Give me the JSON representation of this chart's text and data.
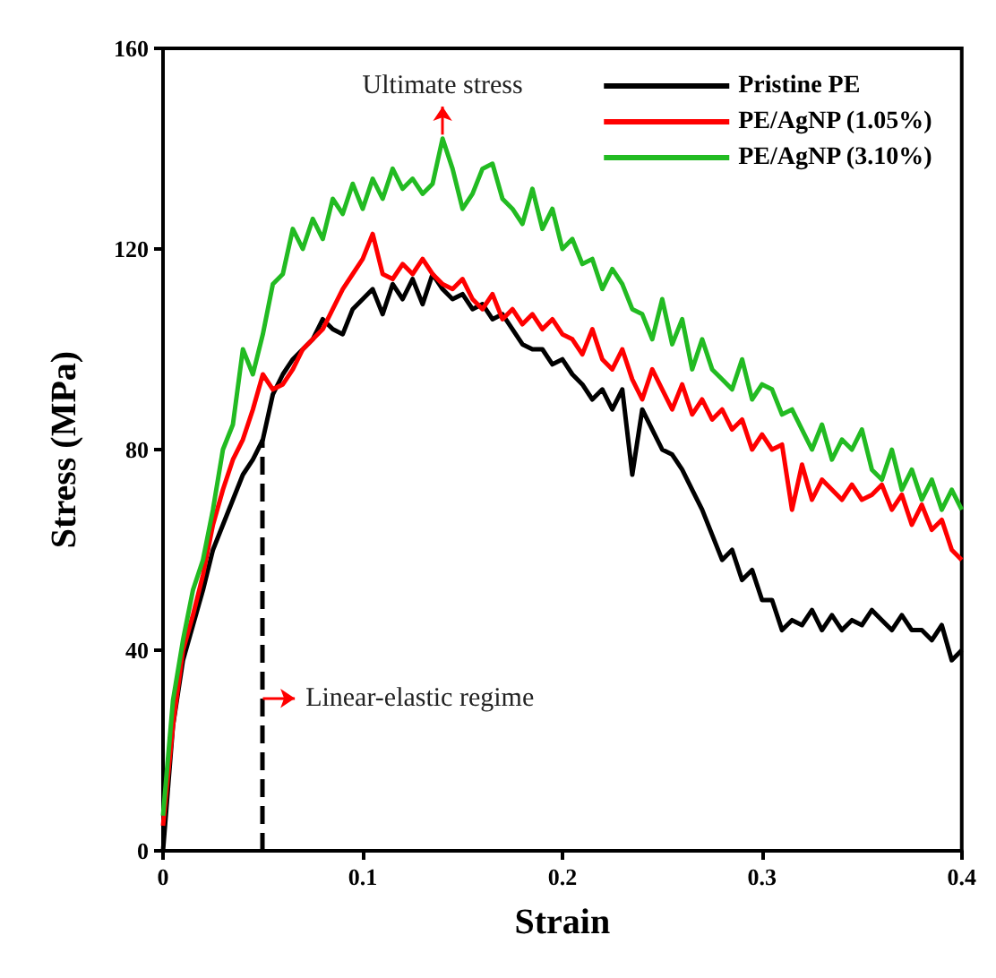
{
  "chart_data": {
    "type": "line",
    "xlabel": "Strain",
    "ylabel": "Stress (MPa)",
    "xlim": [
      0,
      0.4
    ],
    "ylim": [
      0,
      160
    ],
    "xticks": [
      0,
      0.1,
      0.2,
      0.3,
      0.4
    ],
    "yticks": [
      0,
      40,
      80,
      120,
      160
    ],
    "grid": false,
    "legend": "top right",
    "line_style": "solid",
    "marker": "none",
    "x": [
      0,
      0.005,
      0.01,
      0.015,
      0.02,
      0.025,
      0.03,
      0.035,
      0.04,
      0.045,
      0.05,
      0.055,
      0.06,
      0.065,
      0.07,
      0.075,
      0.08,
      0.085,
      0.09,
      0.095,
      0.1,
      0.105,
      0.11,
      0.115,
      0.12,
      0.125,
      0.13,
      0.135,
      0.14,
      0.145,
      0.15,
      0.155,
      0.16,
      0.165,
      0.17,
      0.175,
      0.18,
      0.185,
      0.19,
      0.195,
      0.2,
      0.205,
      0.21,
      0.215,
      0.22,
      0.225,
      0.23,
      0.235,
      0.24,
      0.245,
      0.25,
      0.255,
      0.26,
      0.265,
      0.27,
      0.275,
      0.28,
      0.285,
      0.29,
      0.295,
      0.3,
      0.305,
      0.31,
      0.315,
      0.32,
      0.325,
      0.33,
      0.335,
      0.34,
      0.345,
      0.35,
      0.355,
      0.36,
      0.365,
      0.37,
      0.375,
      0.38,
      0.385,
      0.39,
      0.395,
      0.4
    ],
    "series": [
      {
        "name": "Pristine PE",
        "color": "#000000",
        "values": [
          0,
          25,
          38,
          45,
          52,
          60,
          65,
          70,
          75,
          78,
          82,
          91,
          95,
          98,
          100,
          102,
          106,
          104,
          103,
          108,
          110,
          112,
          107,
          113,
          110,
          114,
          109,
          115,
          112,
          110,
          111,
          108,
          109,
          106,
          107,
          104,
          101,
          100,
          100,
          97,
          98,
          95,
          93,
          90,
          92,
          88,
          92,
          75,
          88,
          84,
          80,
          79,
          76,
          72,
          68,
          63,
          58,
          60,
          54,
          56,
          50,
          50,
          44,
          46,
          45,
          48,
          44,
          47,
          44,
          46,
          45,
          48,
          46,
          44,
          47,
          44,
          44,
          42,
          45,
          38,
          40
        ]
      },
      {
        "name": "PE/AgNP (1.05%)",
        "color": "#ff0000",
        "values": [
          5,
          25,
          40,
          47,
          55,
          65,
          72,
          78,
          82,
          88,
          95,
          92,
          93,
          96,
          100,
          102,
          104,
          108,
          112,
          115,
          118,
          123,
          115,
          114,
          117,
          115,
          118,
          115,
          113,
          112,
          114,
          110,
          108,
          111,
          106,
          108,
          105,
          107,
          104,
          106,
          103,
          102,
          99,
          104,
          98,
          96,
          100,
          94,
          90,
          96,
          92,
          88,
          93,
          87,
          90,
          86,
          88,
          84,
          86,
          80,
          83,
          80,
          81,
          68,
          77,
          70,
          74,
          72,
          70,
          73,
          70,
          71,
          73,
          68,
          71,
          65,
          69,
          64,
          66,
          60,
          58
        ]
      },
      {
        "name": "PE/AgNP (3.10%)",
        "color": "#22bb22",
        "values": [
          7,
          30,
          42,
          52,
          58,
          68,
          80,
          85,
          100,
          95,
          103,
          113,
          115,
          124,
          120,
          126,
          122,
          130,
          127,
          133,
          128,
          134,
          130,
          136,
          132,
          134,
          131,
          133,
          142,
          136,
          128,
          131,
          136,
          137,
          130,
          128,
          125,
          132,
          124,
          128,
          120,
          122,
          117,
          118,
          112,
          116,
          113,
          108,
          107,
          102,
          110,
          101,
          106,
          96,
          102,
          96,
          94,
          92,
          98,
          90,
          93,
          92,
          87,
          88,
          84,
          80,
          85,
          78,
          82,
          80,
          84,
          76,
          74,
          80,
          72,
          76,
          70,
          74,
          68,
          72,
          68
        ]
      }
    ],
    "ref_lines": [
      {
        "axis": "x",
        "value": 0.05,
        "color": "#000000",
        "line_style": "dashed",
        "label": "Linear-elastic regime"
      }
    ],
    "annotations": [
      {
        "text": "Ultimate stress",
        "x": 0.14,
        "y": 142
      }
    ]
  }
}
